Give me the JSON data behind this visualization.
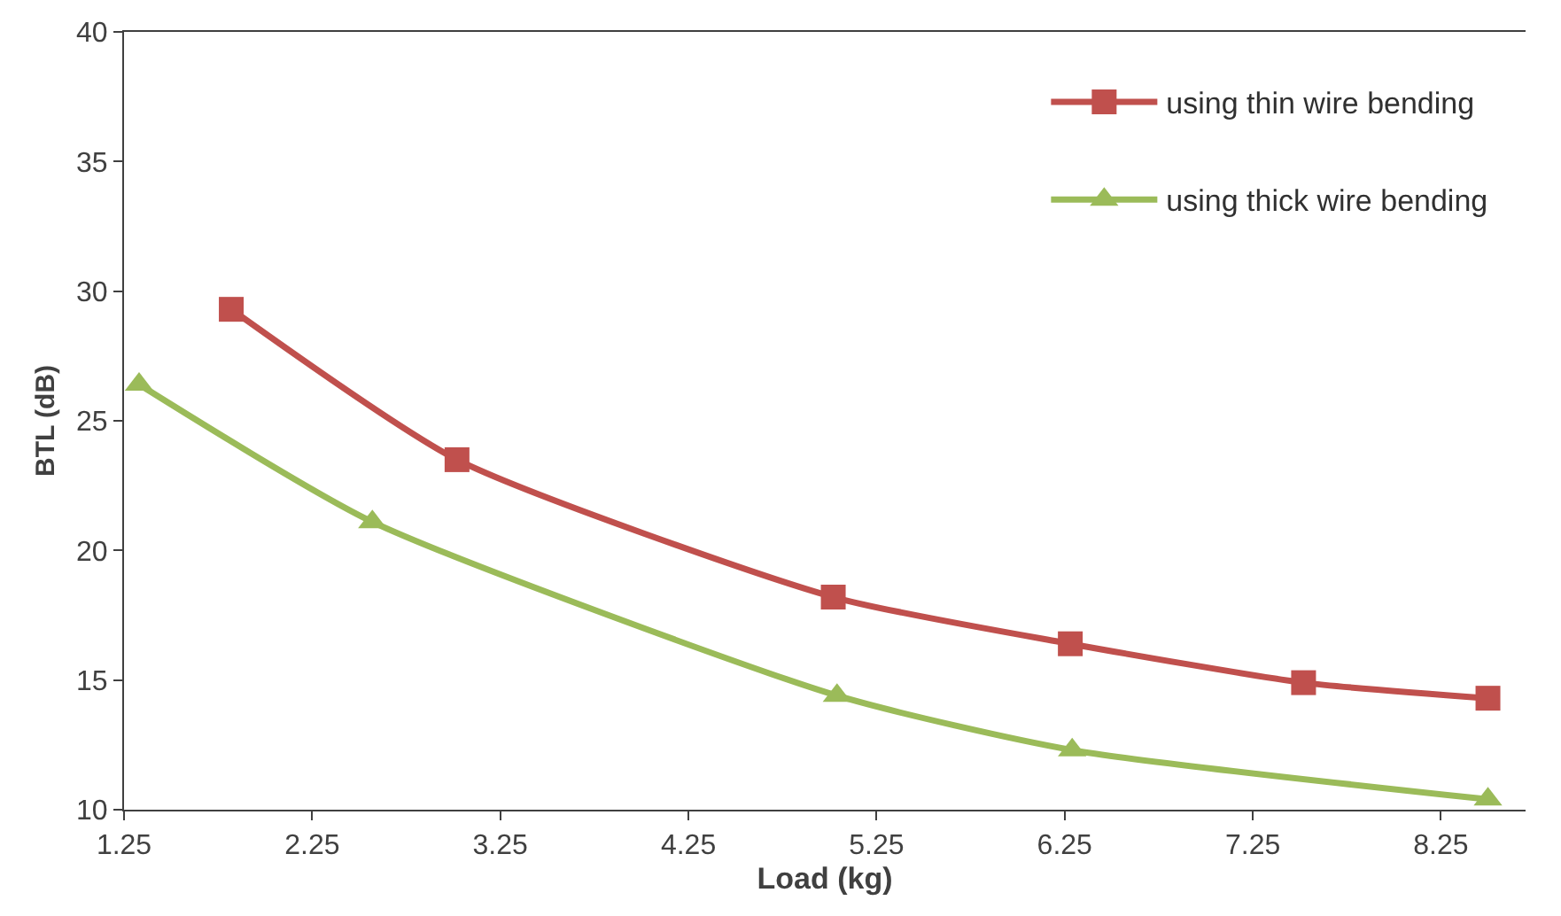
{
  "chart_data": {
    "type": "line",
    "xlabel": "Load (kg)",
    "ylabel": "BTL (dB)",
    "series": [
      {
        "name": "using thin wire bending",
        "color": "#c0504d",
        "marker": "square",
        "x": [
          1.82,
          3.02,
          5.02,
          6.28,
          7.52,
          8.5
        ],
        "values": [
          29.3,
          23.5,
          18.2,
          16.4,
          14.9,
          14.3
        ]
      },
      {
        "name": "using thick wire bending",
        "color": "#9bbb59",
        "marker": "triangle",
        "x": [
          1.33,
          2.57,
          5.04,
          6.29,
          8.5
        ],
        "values": [
          26.4,
          21.1,
          14.4,
          12.3,
          10.4
        ]
      }
    ],
    "xlim": [
      1.25,
      8.7
    ],
    "xticks": [
      1.25,
      2.25,
      3.25,
      4.25,
      5.25,
      6.25,
      7.25,
      8.25
    ],
    "ylim": [
      10,
      40
    ],
    "yticks": [
      10,
      15,
      20,
      25,
      30,
      35,
      40
    ],
    "legend": "top right",
    "line_style": "solid"
  }
}
